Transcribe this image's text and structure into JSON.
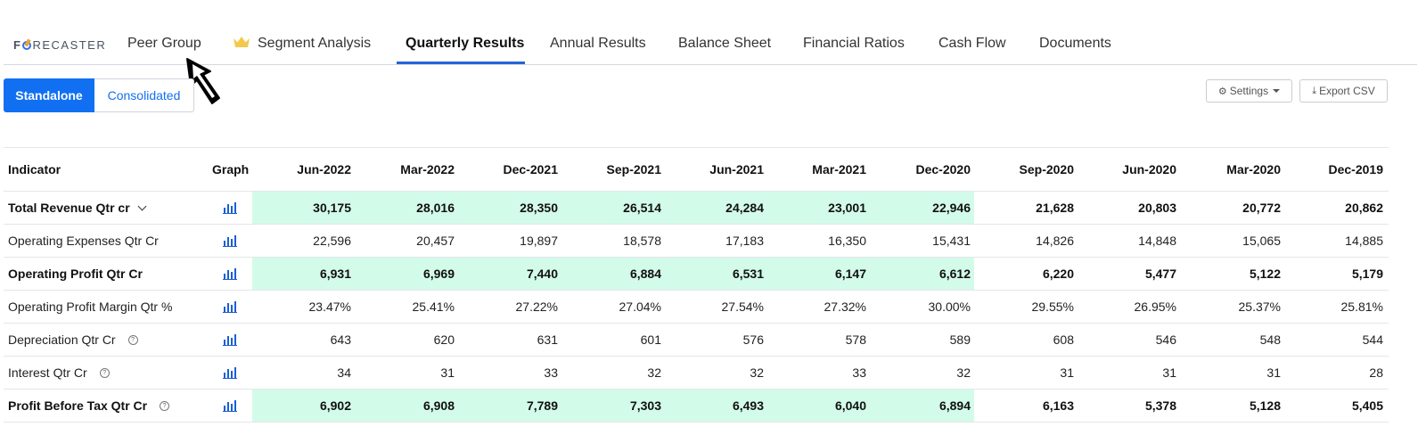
{
  "nav": {
    "logo": "FORECASTER",
    "tabs": [
      {
        "label": "Peer Group"
      },
      {
        "label": "Segment Analysis",
        "icon": "crown-icon"
      },
      {
        "label": "Quarterly Results",
        "active": true
      },
      {
        "label": "Annual Results"
      },
      {
        "label": "Balance Sheet"
      },
      {
        "label": "Financial Ratios"
      },
      {
        "label": "Cash Flow"
      },
      {
        "label": "Documents"
      }
    ]
  },
  "toggle": {
    "standalone": "Standalone",
    "consolidated": "Consolidated",
    "selected": "Standalone"
  },
  "toolbar": {
    "settings": "Settings",
    "export": "Export CSV"
  },
  "colors": {
    "accent": "#1170f2",
    "highlight": "#d3fbe9",
    "active_tab_underline": "#2563d9"
  },
  "table": {
    "headers": [
      "Indicator",
      "Graph",
      "Jun-2022",
      "Mar-2022",
      "Dec-2021",
      "Sep-2021",
      "Jun-2021",
      "Mar-2021",
      "Dec-2020",
      "Sep-2020",
      "Jun-2020",
      "Mar-2020",
      "Dec-2019"
    ],
    "rows": [
      {
        "label": "Total Revenue Qtr cr",
        "bold": true,
        "highlight": true,
        "expand": true,
        "help": false,
        "values": [
          "30,175",
          "28,016",
          "28,350",
          "26,514",
          "24,284",
          "23,001",
          "22,946",
          "21,628",
          "20,803",
          "20,772",
          "20,862"
        ]
      },
      {
        "label": "Operating Expenses Qtr Cr",
        "bold": false,
        "highlight": false,
        "expand": false,
        "help": false,
        "values": [
          "22,596",
          "20,457",
          "19,897",
          "18,578",
          "17,183",
          "16,350",
          "15,431",
          "14,826",
          "14,848",
          "15,065",
          "14,885"
        ]
      },
      {
        "label": "Operating Profit Qtr Cr",
        "bold": true,
        "highlight": true,
        "expand": false,
        "help": false,
        "values": [
          "6,931",
          "6,969",
          "7,440",
          "6,884",
          "6,531",
          "6,147",
          "6,612",
          "6,220",
          "5,477",
          "5,122",
          "5,179"
        ]
      },
      {
        "label": "Operating Profit Margin Qtr %",
        "bold": false,
        "highlight": false,
        "expand": false,
        "help": false,
        "values": [
          "23.47%",
          "25.41%",
          "27.22%",
          "27.04%",
          "27.54%",
          "27.32%",
          "30.00%",
          "29.55%",
          "26.95%",
          "25.37%",
          "25.81%"
        ]
      },
      {
        "label": "Depreciation Qtr Cr",
        "bold": false,
        "highlight": false,
        "expand": false,
        "help": true,
        "values": [
          "643",
          "620",
          "631",
          "601",
          "576",
          "578",
          "589",
          "608",
          "546",
          "548",
          "544"
        ]
      },
      {
        "label": "Interest Qtr Cr",
        "bold": false,
        "highlight": false,
        "expand": false,
        "help": true,
        "values": [
          "34",
          "31",
          "33",
          "32",
          "32",
          "33",
          "32",
          "31",
          "31",
          "31",
          "28"
        ]
      },
      {
        "label": "Profit Before Tax Qtr Cr",
        "bold": true,
        "highlight": true,
        "expand": false,
        "help": true,
        "values": [
          "6,902",
          "6,908",
          "7,789",
          "7,303",
          "6,493",
          "6,040",
          "6,894",
          "6,163",
          "5,378",
          "5,128",
          "5,405"
        ]
      }
    ]
  }
}
